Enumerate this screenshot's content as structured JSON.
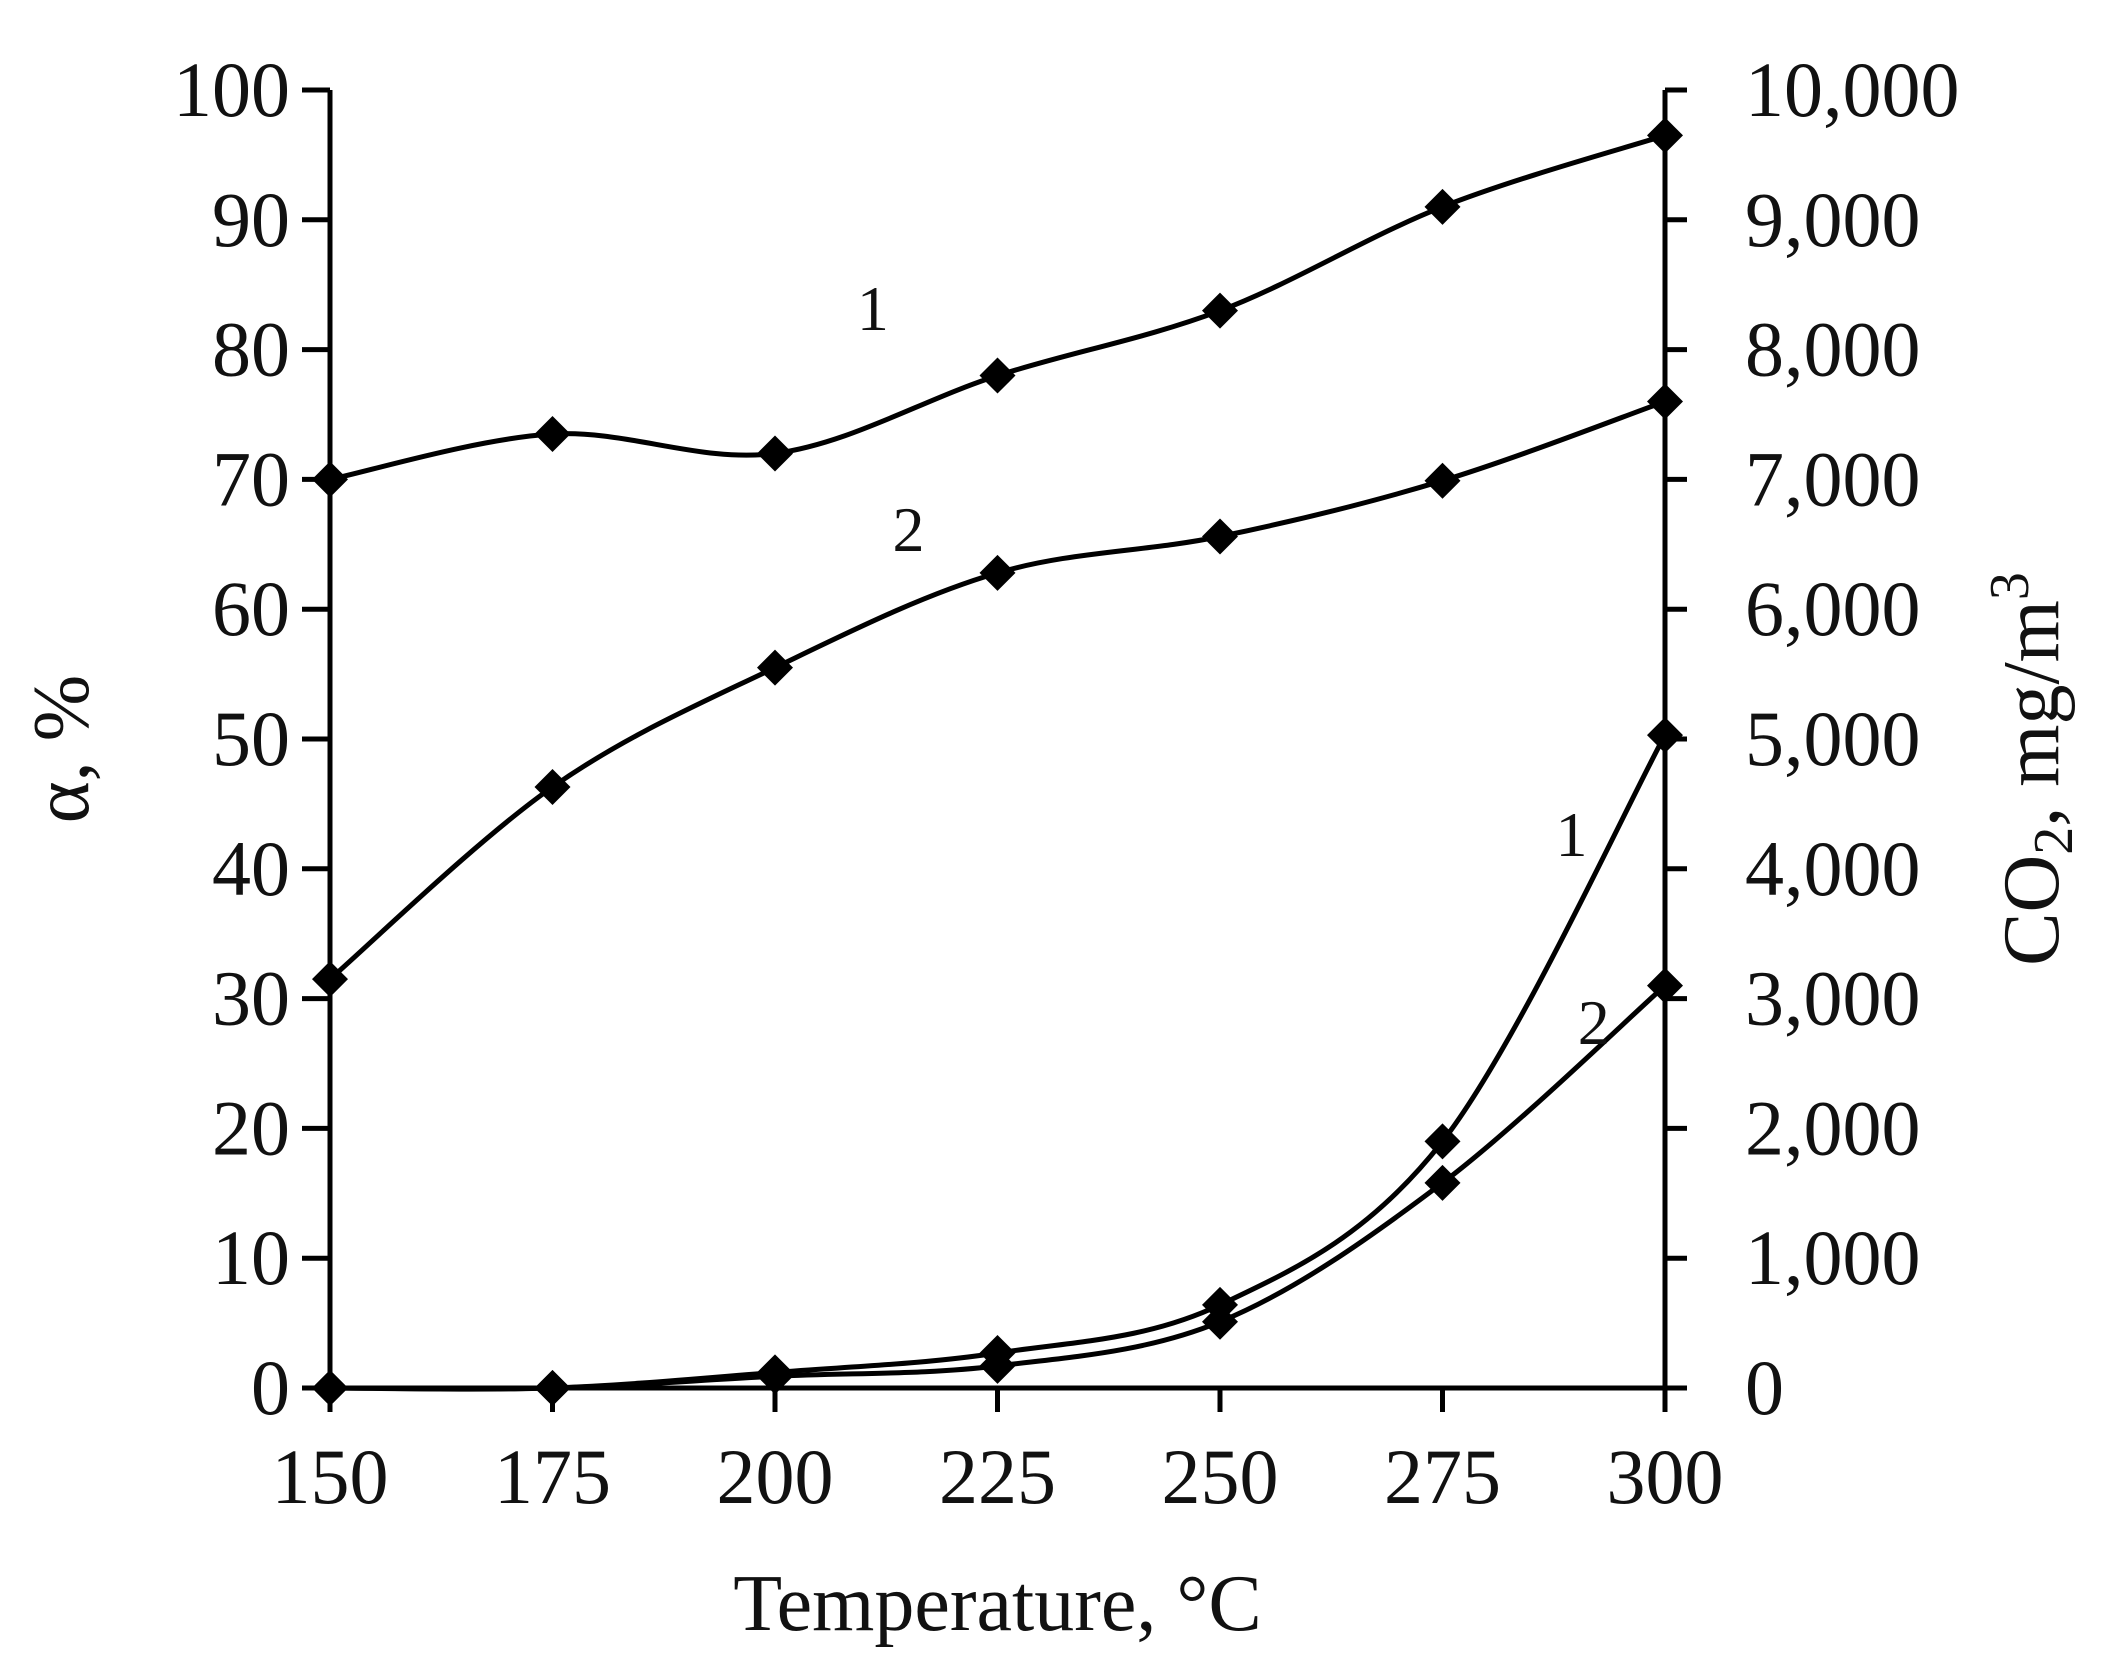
{
  "chart_data": {
    "type": "line",
    "xlabel": "Temperature, °C",
    "ylabel_left_symbol": "α",
    "ylabel_left_unit": ", %",
    "ylabel_right_main": "CO",
    "ylabel_right_sub": "2",
    "ylabel_right_unit": ", mg/m",
    "ylabel_right_sup": "3",
    "x_ticks": [
      "150",
      "175",
      "200",
      "225",
      "250",
      "275",
      "300"
    ],
    "y_left_ticks": [
      "0",
      "10",
      "20",
      "30",
      "40",
      "50",
      "60",
      "70",
      "80",
      "90",
      "100"
    ],
    "y_right_ticks": [
      "0",
      "1,000",
      "2,000",
      "3,000",
      "4,000",
      "5,000",
      "6,000",
      "7,000",
      "8,000",
      "9,000",
      "10,000"
    ],
    "xlim": [
      150,
      300
    ],
    "ylim_left": [
      0,
      100
    ],
    "ylim_right": [
      0,
      10000
    ],
    "x": [
      150,
      175,
      200,
      225,
      250,
      275,
      300
    ],
    "series": [
      {
        "label": "1",
        "axis": "left",
        "values": [
          70,
          73.5,
          72,
          78,
          83,
          91,
          96.5
        ]
      },
      {
        "label": "2",
        "axis": "left",
        "values": [
          31.5,
          46.3,
          55.5,
          62.8,
          65.6,
          69.9,
          76
        ]
      },
      {
        "label": "1",
        "axis": "right",
        "values": [
          0,
          0,
          120,
          270,
          640,
          1900,
          5030
        ]
      },
      {
        "label": "2",
        "axis": "right",
        "values": [
          0,
          0,
          90,
          170,
          510,
          1580,
          3100
        ]
      }
    ],
    "line_color": "#000000",
    "marker": "diamond",
    "grid": false
  }
}
